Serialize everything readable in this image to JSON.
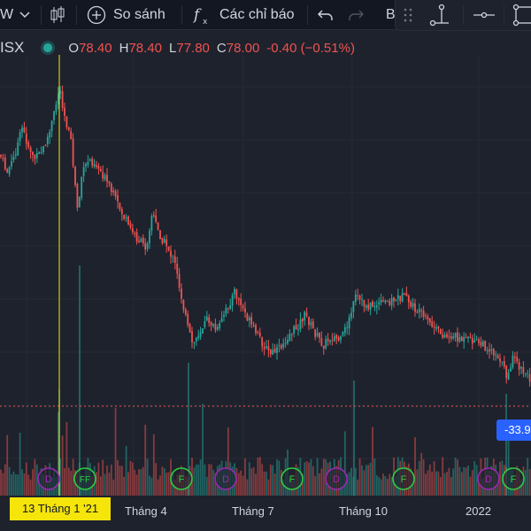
{
  "toolbar": {
    "interval_partial": "W",
    "compare_label": "So sánh",
    "indicators_label": "Các chỉ báo",
    "partial_label": "B"
  },
  "legend": {
    "symbol_partial": "ISX",
    "o_label": "O",
    "o_value": "78.40",
    "h_label": "H",
    "h_value": "78.40",
    "l_label": "L",
    "l_value": "77.80",
    "c_label": "C",
    "c_value": "78.00",
    "change": "-0.40 (−0.51%)"
  },
  "price_badge": "-33.9",
  "crosshair_date": "13 Tháng 1 '21",
  "x_axis": [
    "Tháng 4",
    "Tháng 7",
    "Tháng 10",
    "2022"
  ],
  "event_markers": [
    "D",
    "FF",
    "F",
    "D",
    "F",
    "D",
    "F",
    "D",
    "F"
  ],
  "colors": {
    "up": "#26a69a",
    "down": "#ef5350",
    "background": "#1e222d",
    "crosshair": "#f5e50b",
    "badge": "#2962ff"
  }
}
